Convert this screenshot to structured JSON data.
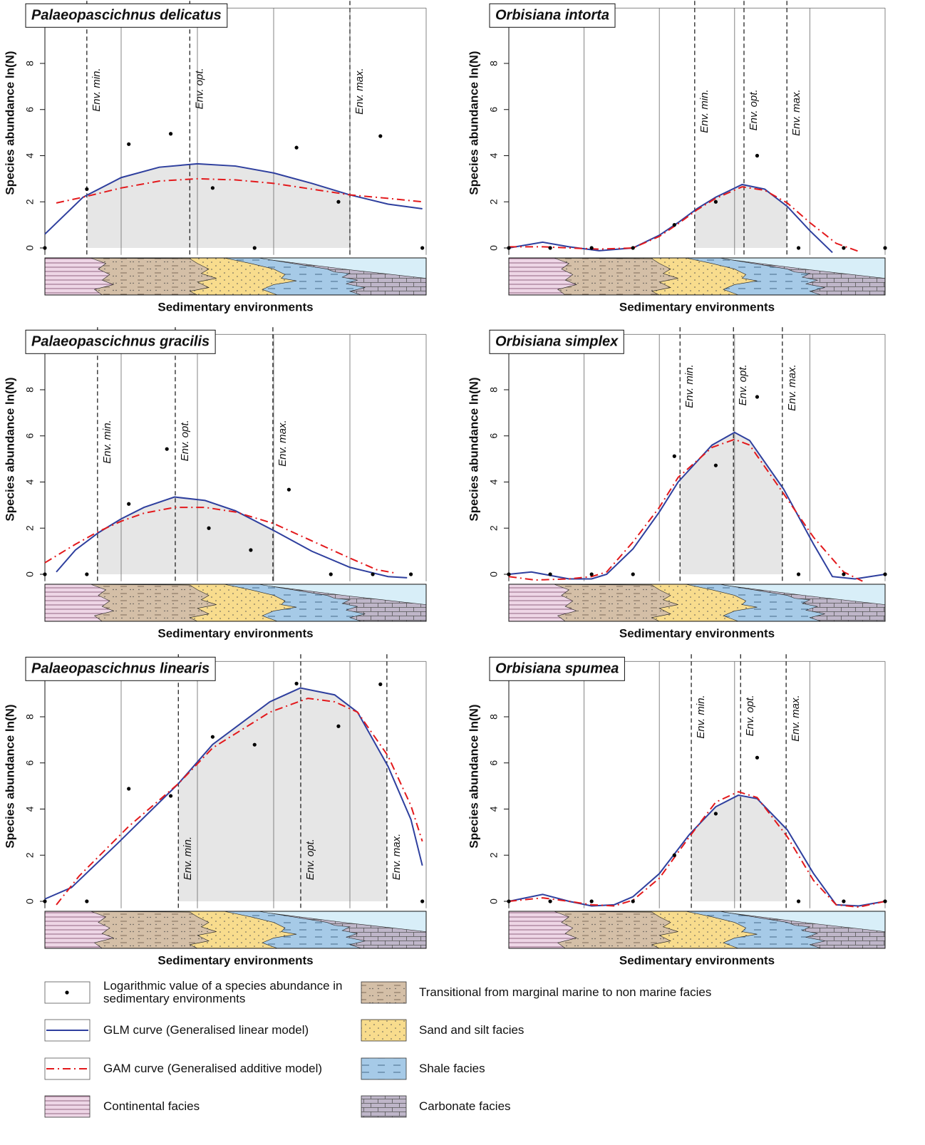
{
  "chart_data": [
    {
      "type": "scatter",
      "title": "Palaeopascichnus delicatus",
      "x_label": "Sedimentary environments",
      "y_label": "Species abundance ln(N)",
      "xlim": [
        0,
        100
      ],
      "ylim": [
        -0.3,
        10.4
      ],
      "yticks": [
        0,
        2,
        4,
        6,
        8
      ],
      "vgrid": [
        20,
        40,
        60,
        80,
        100
      ],
      "point_color": "#000000",
      "shade": "#e6e6e6",
      "x": [
        0,
        11,
        22,
        33,
        44,
        55,
        66,
        77,
        88,
        99
      ],
      "values": [
        0,
        2.55,
        4.5,
        4.95,
        2.6,
        0,
        4.35,
        2.0,
        4.85,
        0
      ],
      "env": [
        {
          "label": "Env. min.",
          "x": 11
        },
        {
          "label": "Env. opt.",
          "x": 38
        },
        {
          "label": "Env. max.",
          "x": 80
        }
      ],
      "series": [
        {
          "color": "#2e3f9e",
          "dash": "solid",
          "x": [
            0,
            10,
            20,
            30,
            40,
            50,
            60,
            70,
            80,
            90,
            99
          ],
          "values": [
            0.6,
            2.2,
            3.05,
            3.5,
            3.65,
            3.55,
            3.25,
            2.8,
            2.3,
            1.9,
            1.7
          ]
        },
        {
          "color": "#e3191c",
          "dash": "dashdot",
          "x": [
            3,
            10,
            20,
            30,
            40,
            50,
            60,
            70,
            80,
            90,
            99
          ],
          "values": [
            1.95,
            2.2,
            2.6,
            2.9,
            3.0,
            2.95,
            2.8,
            2.55,
            2.3,
            2.15,
            2.0
          ]
        }
      ]
    },
    {
      "type": "scatter",
      "title": "Orbisiana intorta",
      "x_label": "Sedimentary environments",
      "y_label": "Species abundance ln(N)",
      "xlim": [
        0,
        100
      ],
      "ylim": [
        -0.3,
        10.4
      ],
      "yticks": [
        0,
        2,
        4,
        6,
        8
      ],
      "vgrid": [
        20,
        40,
        60,
        80,
        100
      ],
      "point_color": "#000000",
      "shade": "#e6e6e6",
      "x": [
        0,
        11,
        22,
        33,
        44,
        55,
        66,
        77,
        89,
        100
      ],
      "values": [
        0,
        0,
        0,
        0,
        1.0,
        2.0,
        4.0,
        0,
        0,
        0
      ],
      "env": [
        {
          "label": "Env. min.",
          "x": 49.4
        },
        {
          "label": "Env. opt.",
          "x": 62.5
        },
        {
          "label": "Env. max.",
          "x": 73.9
        }
      ],
      "series": [
        {
          "color": "#2e3f9e",
          "dash": "solid",
          "x": [
            0,
            9,
            16,
            24,
            33,
            40,
            45,
            50,
            55,
            62,
            68,
            74,
            80,
            86
          ],
          "values": [
            0,
            0.25,
            0.05,
            -0.12,
            0,
            0.55,
            1.1,
            1.7,
            2.2,
            2.75,
            2.55,
            1.8,
            0.75,
            -0.2
          ]
        },
        {
          "color": "#e3191c",
          "dash": "dashdot",
          "x": [
            0,
            9,
            16,
            24,
            33,
            40,
            45,
            50,
            55,
            62,
            68,
            74,
            80,
            87,
            93
          ],
          "values": [
            0.05,
            0.05,
            0,
            -0.05,
            0,
            0.5,
            1.05,
            1.65,
            2.15,
            2.65,
            2.5,
            1.95,
            1.1,
            0.2,
            -0.15
          ]
        }
      ]
    },
    {
      "type": "scatter",
      "title": "Palaeopascichnus gracilis",
      "x_label": "Sedimentary environments",
      "y_label": "Species abundance ln(N)",
      "xlim": [
        0,
        100
      ],
      "ylim": [
        -0.3,
        10.4
      ],
      "yticks": [
        0,
        2,
        4,
        6,
        8
      ],
      "vgrid": [
        20,
        40,
        60,
        80,
        100
      ],
      "point_color": "#000000",
      "shade": "#e6e6e6",
      "x": [
        0,
        11,
        22,
        32,
        43,
        54,
        64,
        75,
        86,
        96
      ],
      "values": [
        0,
        0,
        3.05,
        5.43,
        2.0,
        1.05,
        3.67,
        0,
        0,
        0
      ],
      "env": [
        {
          "label": "Env. min.",
          "x": 13.8
        },
        {
          "label": "Env. opt.",
          "x": 34.2
        },
        {
          "label": "Env. max.",
          "x": 59.8
        }
      ],
      "series": [
        {
          "color": "#2e3f9e",
          "dash": "solid",
          "x": [
            3,
            8,
            14,
            20,
            26,
            34,
            42,
            50,
            60,
            70,
            80,
            90,
            95
          ],
          "values": [
            0.1,
            1.05,
            1.8,
            2.4,
            2.9,
            3.35,
            3.2,
            2.75,
            1.9,
            1.0,
            0.3,
            -0.1,
            -0.15
          ]
        },
        {
          "color": "#e3191c",
          "dash": "dashdot",
          "x": [
            0,
            8,
            14,
            20,
            26,
            34,
            42,
            50,
            60,
            70,
            80,
            87,
            92
          ],
          "values": [
            0.5,
            1.3,
            1.85,
            2.3,
            2.65,
            2.9,
            2.9,
            2.7,
            2.2,
            1.45,
            0.7,
            0.2,
            0.05
          ]
        }
      ]
    },
    {
      "type": "scatter",
      "title": "Orbisiana simplex",
      "x_label": "Sedimentary environments",
      "y_label": "Species abundance ln(N)",
      "xlim": [
        0,
        100
      ],
      "ylim": [
        -0.3,
        10.4
      ],
      "yticks": [
        0,
        2,
        4,
        6,
        8
      ],
      "vgrid": [
        20,
        40,
        60,
        80,
        100
      ],
      "point_color": "#000000",
      "shade": "#e6e6e6",
      "x": [
        0,
        11,
        22,
        33,
        44,
        55,
        66,
        77,
        89,
        100
      ],
      "values": [
        0,
        0,
        0,
        0,
        5.12,
        4.72,
        7.69,
        0,
        0,
        0
      ],
      "env": [
        {
          "label": "Env. min.",
          "x": 45.5
        },
        {
          "label": "Env. opt.",
          "x": 59.7
        },
        {
          "label": "Env. max.",
          "x": 72.7
        }
      ],
      "series": [
        {
          "color": "#2e3f9e",
          "dash": "solid",
          "x": [
            0,
            6,
            16,
            22,
            26,
            33,
            40,
            45,
            54,
            60,
            64,
            73,
            81,
            86,
            92,
            100
          ],
          "values": [
            0,
            0.1,
            -0.2,
            -0.2,
            0,
            1.1,
            2.7,
            4.0,
            5.6,
            6.15,
            5.8,
            3.7,
            1.3,
            -0.1,
            -0.2,
            0
          ]
        },
        {
          "color": "#e3191c",
          "dash": "dashdot",
          "x": [
            0,
            7,
            16,
            22,
            26,
            33,
            40,
            45,
            54,
            60,
            64,
            73,
            81,
            89,
            94
          ],
          "values": [
            -0.1,
            -0.25,
            -0.2,
            -0.1,
            0.1,
            1.4,
            2.9,
            4.2,
            5.5,
            5.85,
            5.6,
            3.5,
            1.6,
            0.1,
            -0.3
          ]
        }
      ]
    },
    {
      "type": "scatter",
      "title": "Palaeopascichnus linearis",
      "x_label": "Sedimentary environments",
      "y_label": "Species abundance ln(N)",
      "xlim": [
        0,
        100
      ],
      "ylim": [
        -0.3,
        10.4
      ],
      "yticks": [
        0,
        2,
        4,
        6,
        8
      ],
      "vgrid": [
        20,
        40,
        60,
        80,
        100
      ],
      "point_color": "#000000",
      "shade": "#e6e6e6",
      "x": [
        0,
        11,
        22,
        33,
        44,
        55,
        66,
        77,
        88,
        99
      ],
      "values": [
        0,
        0,
        4.88,
        4.57,
        7.13,
        6.79,
        9.44,
        7.59,
        9.41,
        0
      ],
      "env": [
        {
          "label": "Env. min.",
          "x": 35
        },
        {
          "label": "Env. opt.",
          "x": 67.1
        },
        {
          "label": "Env. max.",
          "x": 89.7
        }
      ],
      "series": [
        {
          "color": "#2e3f9e",
          "dash": "solid",
          "x": [
            0,
            7,
            19,
            35,
            44,
            59,
            67,
            76,
            82,
            90,
            96,
            99
          ],
          "values": [
            0.1,
            0.6,
            2.5,
            5.1,
            6.8,
            8.65,
            9.25,
            8.95,
            8.2,
            5.85,
            3.55,
            1.55
          ]
        },
        {
          "color": "#e3191c",
          "dash": "dashdot",
          "x": [
            3,
            9,
            22,
            35,
            44,
            59,
            69,
            76,
            82,
            90,
            96,
            99
          ],
          "values": [
            -0.15,
            1.1,
            3.25,
            5.1,
            6.65,
            8.2,
            8.8,
            8.65,
            8.2,
            6.3,
            4.15,
            2.6
          ]
        }
      ]
    },
    {
      "type": "scatter",
      "title": "Orbisiana spumea",
      "x_label": "Sedimentary environments",
      "y_label": "Species abundance ln(N)",
      "xlim": [
        0,
        100
      ],
      "ylim": [
        -0.3,
        10.4
      ],
      "yticks": [
        0,
        2,
        4,
        6,
        8
      ],
      "vgrid": [
        20,
        40,
        60,
        80,
        100
      ],
      "point_color": "#000000",
      "shade": "#e6e6e6",
      "x": [
        0,
        11,
        22,
        33,
        44,
        55,
        66,
        77,
        89,
        100
      ],
      "values": [
        0,
        0,
        0,
        0,
        2.0,
        3.8,
        6.23,
        0,
        0,
        0
      ],
      "env": [
        {
          "label": "Env. min.",
          "x": 48.5
        },
        {
          "label": "Env. opt.",
          "x": 61.6
        },
        {
          "label": "Env. max.",
          "x": 73.7
        }
      ],
      "series": [
        {
          "color": "#2e3f9e",
          "dash": "solid",
          "x": [
            0,
            9,
            16,
            22,
            28,
            33,
            40,
            48,
            55,
            61,
            66,
            74,
            81,
            87,
            93,
            100
          ],
          "values": [
            0,
            0.3,
            0,
            -0.2,
            -0.15,
            0.2,
            1.2,
            2.9,
            4.1,
            4.6,
            4.45,
            3.1,
            1.2,
            -0.15,
            -0.2,
            0
          ]
        },
        {
          "color": "#e3191c",
          "dash": "dashdot",
          "x": [
            0,
            9,
            16,
            22,
            28,
            33,
            40,
            48,
            55,
            61,
            66,
            74,
            81,
            87,
            93,
            100
          ],
          "values": [
            0,
            0.15,
            0,
            -0.15,
            -0.2,
            0.05,
            1.0,
            2.8,
            4.3,
            4.75,
            4.5,
            2.8,
            0.9,
            -0.15,
            -0.25,
            0
          ]
        }
      ]
    }
  ],
  "legend": {
    "items": [
      "Logarithmic value of a species abundance in sedimentary environments",
      "GLM curve (Generalised linear model)",
      "GAM curve (Generalised additive model)",
      "Continental facies",
      "Transitional from marginal marine to non marine facies",
      "Sand and silt facies",
      "Shale facies",
      "Carbonate facies"
    ]
  }
}
